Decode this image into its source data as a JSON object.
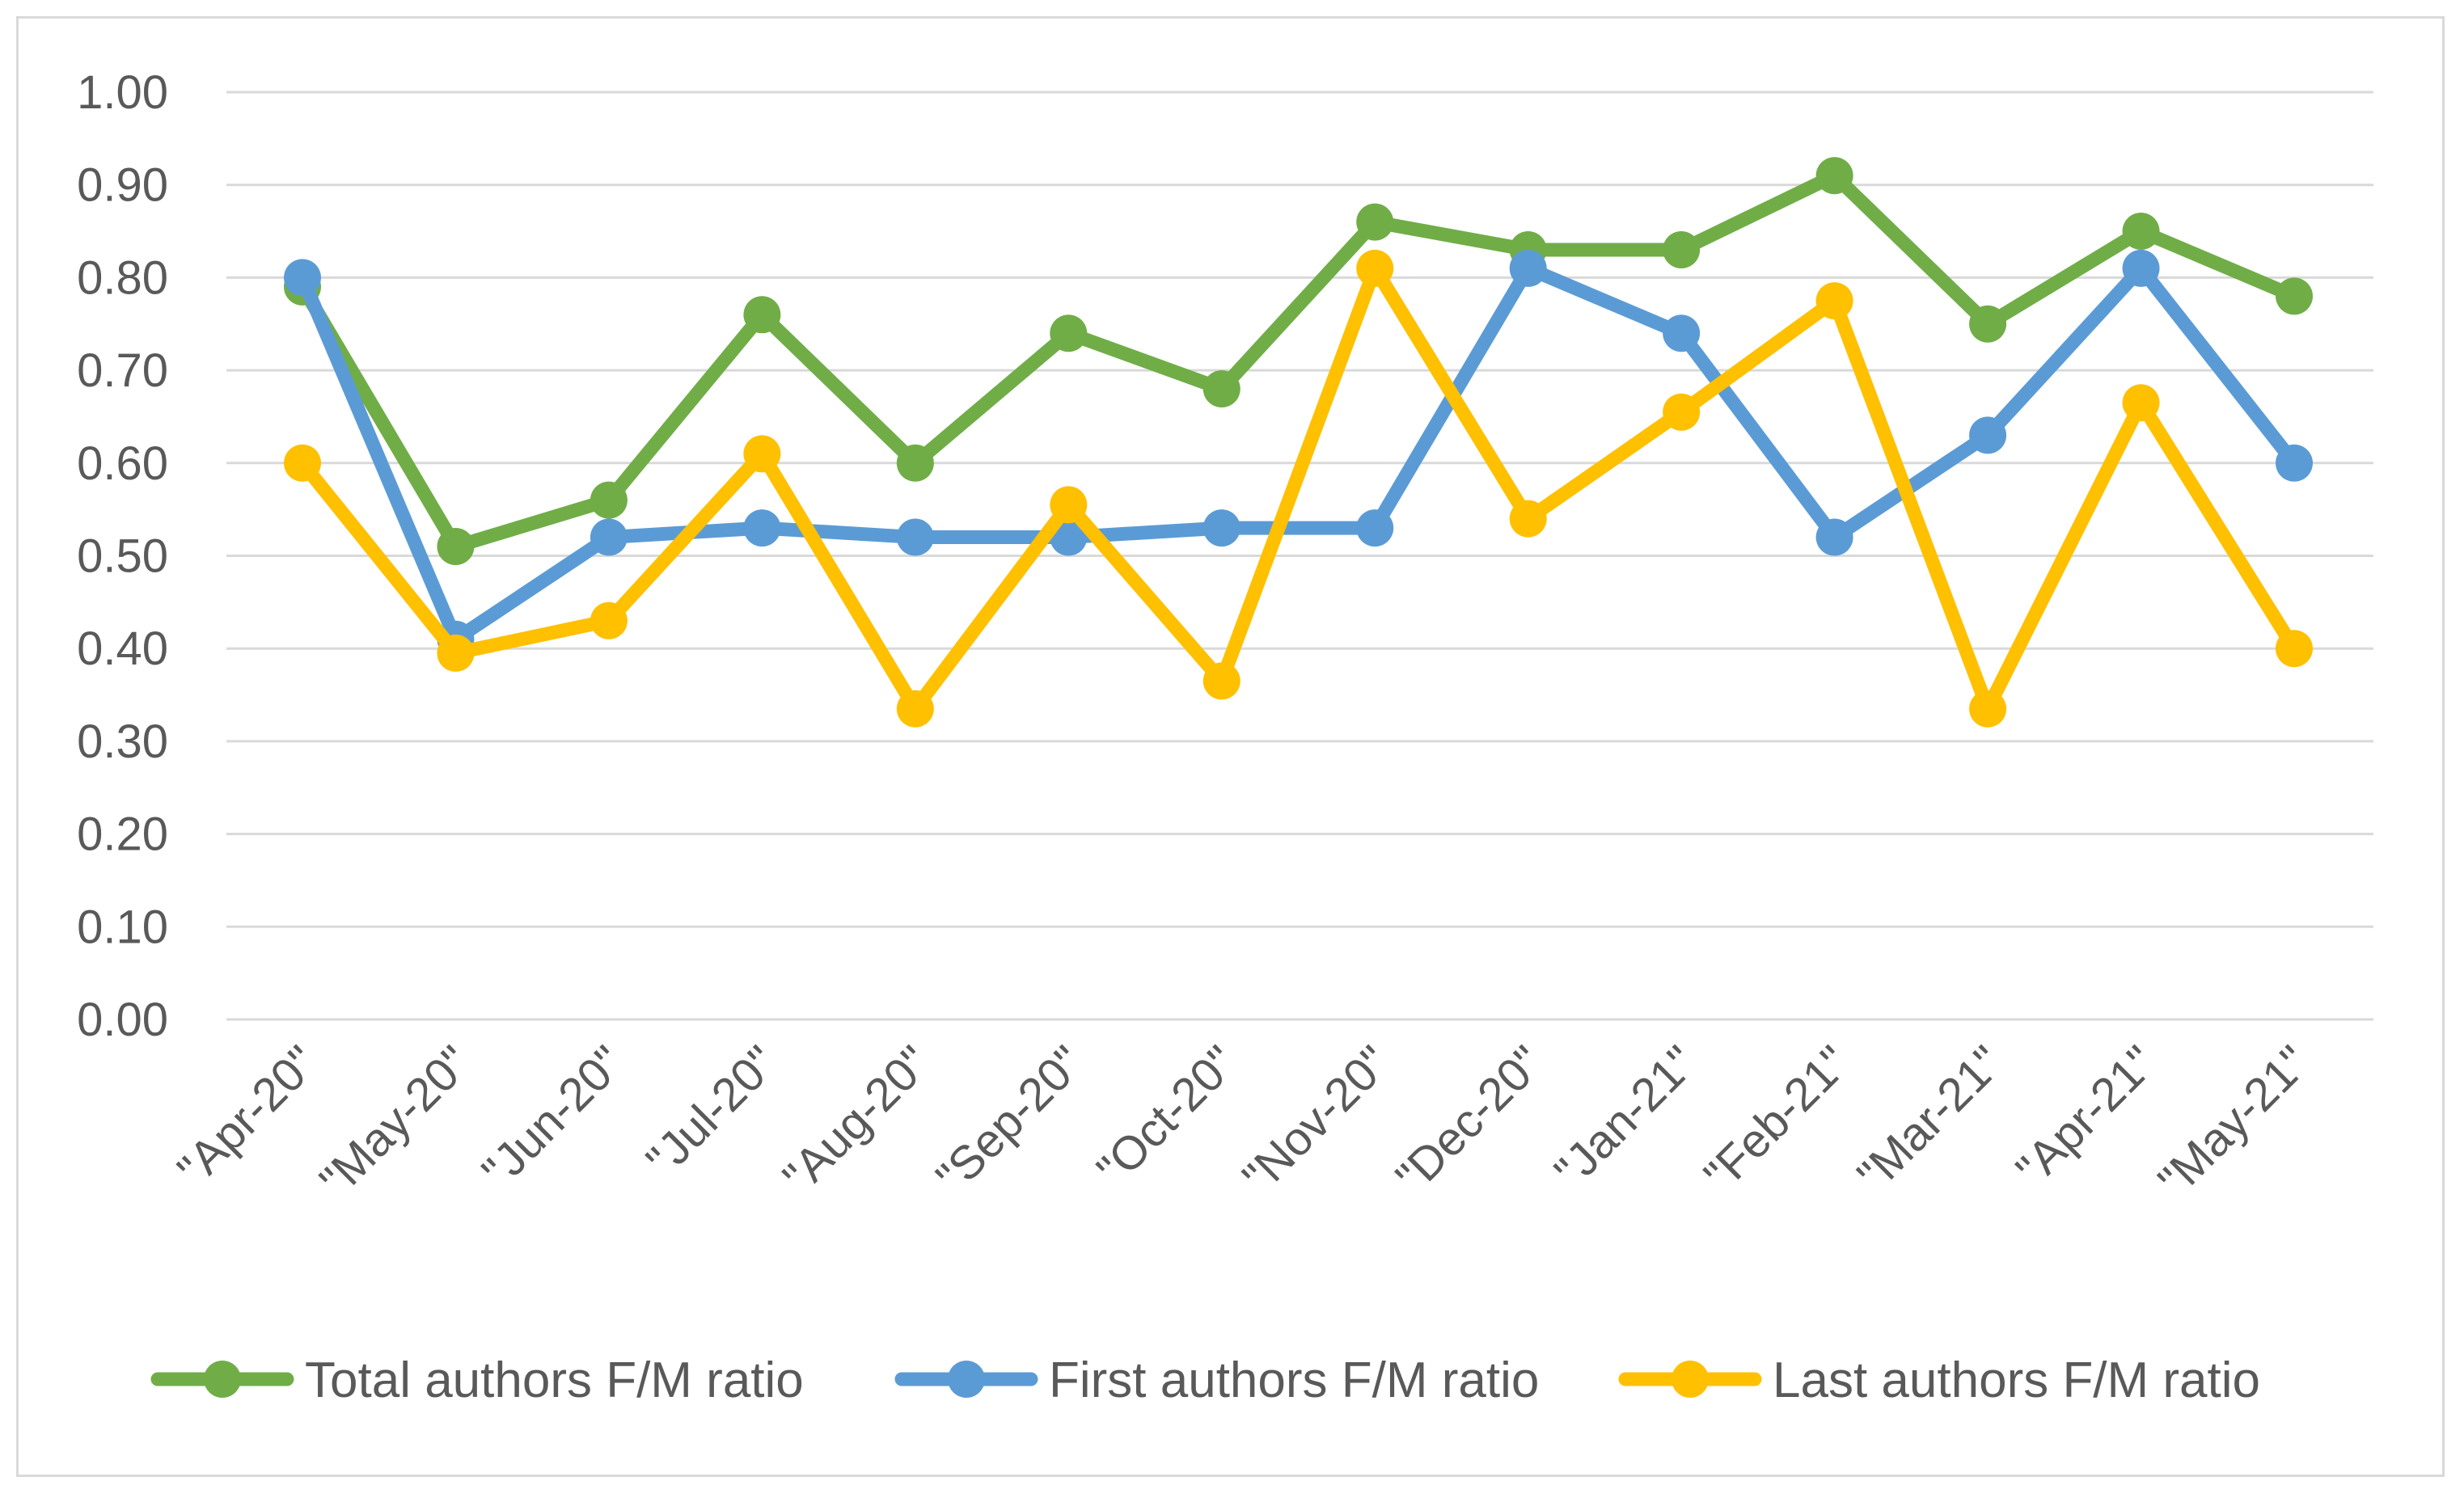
{
  "chart_data": {
    "type": "line",
    "title": "",
    "xlabel": "",
    "ylabel": "",
    "ylim": [
      0,
      1
    ],
    "yticks": [
      "0.00",
      "0.10",
      "0.20",
      "0.30",
      "0.40",
      "0.50",
      "0.60",
      "0.70",
      "0.80",
      "0.90",
      "1.00"
    ],
    "grid": "horizontal",
    "legend_position": "bottom",
    "categories": [
      "\"Apr-20\"",
      "\"May-20\"",
      "\"Jun-20\"",
      "\"Jul-20\"",
      "\"Aug-20\"",
      "\"Sep-20\"",
      "\"Oct-20\"",
      "\"Nov-20\"",
      "\"Dec-20\"",
      "\"Jan-21\"",
      "\"Feb-21\"",
      "\"Mar-21\"",
      "\"Apr-21\"",
      "\"May-21\""
    ],
    "series": [
      {
        "name": "Total authors F/M ratio",
        "color": "#70ad47",
        "values": [
          0.79,
          0.51,
          0.56,
          0.76,
          0.6,
          0.74,
          0.68,
          0.86,
          0.83,
          0.83,
          0.91,
          0.75,
          0.85,
          0.78
        ]
      },
      {
        "name": "First authors F/M ratio",
        "color": "#5b9bd5",
        "values": [
          0.8,
          0.41,
          0.52,
          0.53,
          0.52,
          0.52,
          0.53,
          0.53,
          0.81,
          0.74,
          0.52,
          0.63,
          0.81,
          0.6
        ]
      },
      {
        "name": "Last authors F/M ratio",
        "color": "#ffc000",
        "values": [
          0.6,
          0.395,
          0.43,
          0.61,
          0.335,
          0.555,
          0.365,
          0.81,
          0.54,
          0.655,
          0.775,
          0.335,
          0.665,
          0.4
        ]
      }
    ]
  }
}
